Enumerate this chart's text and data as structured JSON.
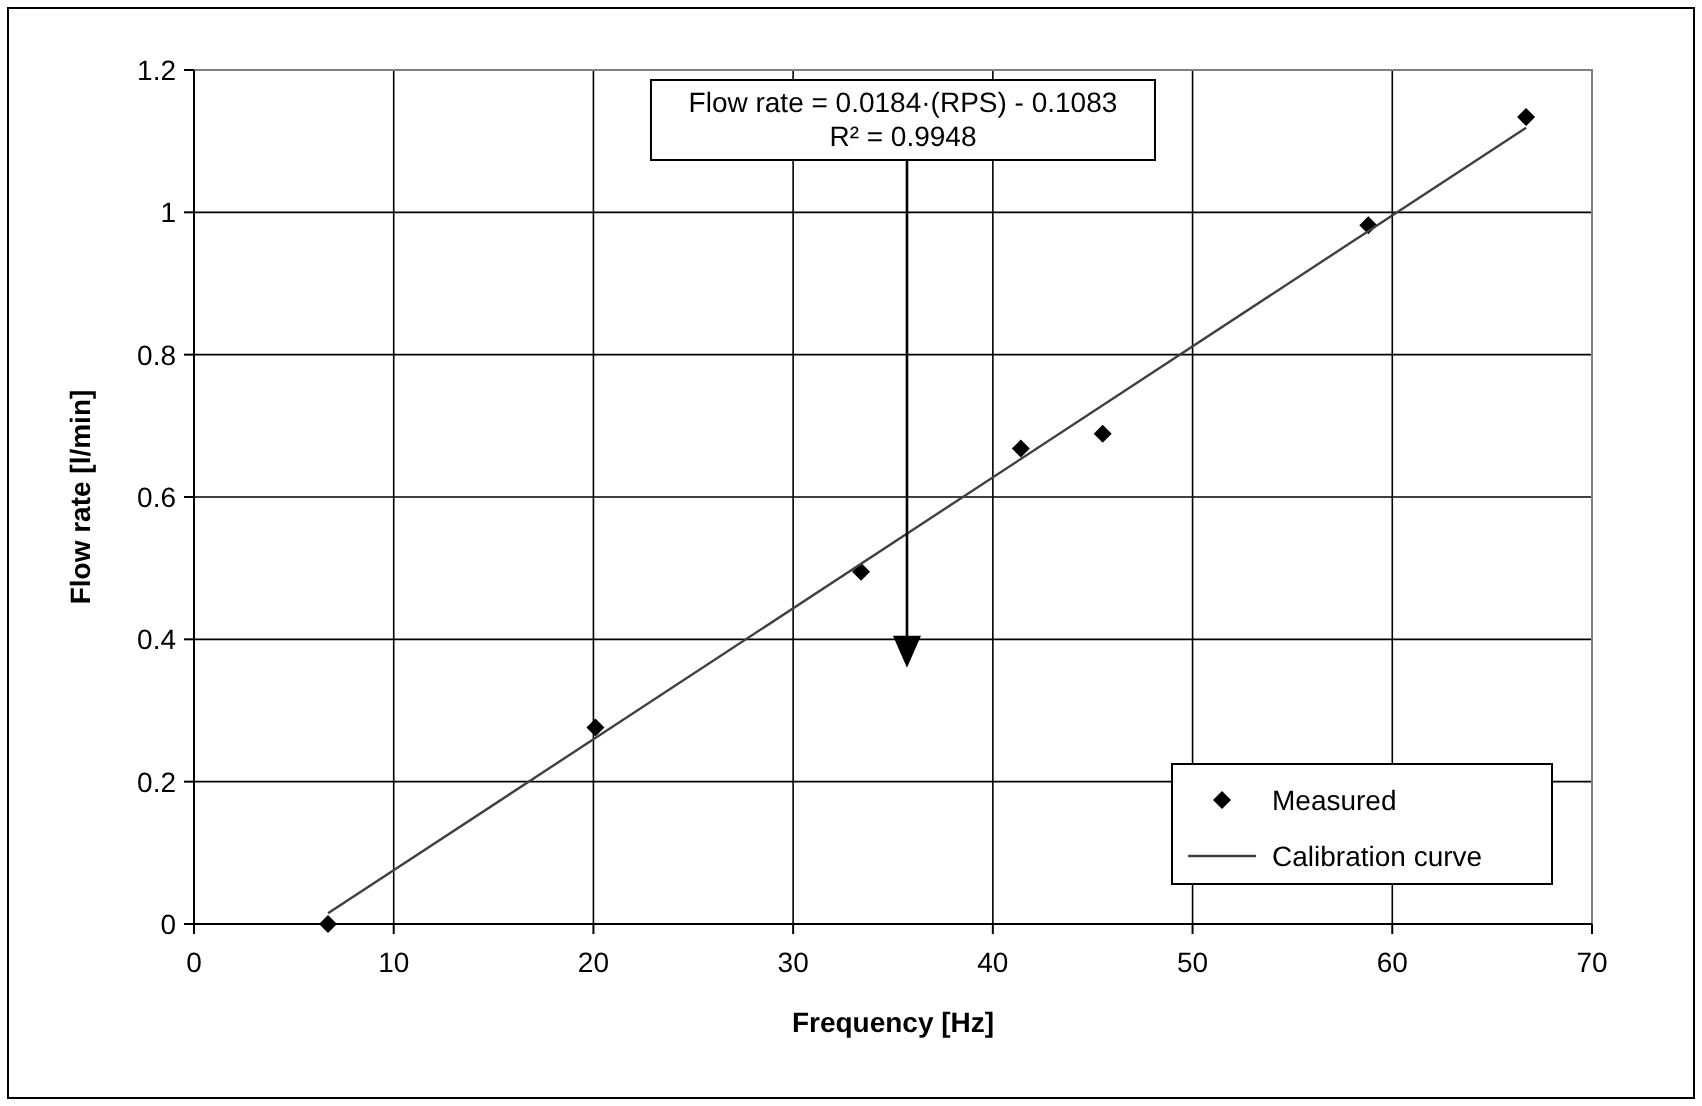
{
  "chart_data": {
    "type": "scatter",
    "xlabel": "Frequency [Hz]",
    "ylabel": "Flow rate [l/min]",
    "xlim": [
      0,
      70
    ],
    "xticks": [
      0,
      10,
      20,
      30,
      40,
      50,
      60,
      70
    ],
    "ylim": [
      0,
      1.2
    ],
    "yticks": [
      0,
      0.2,
      0.4,
      0.6,
      0.8,
      1,
      1.2
    ],
    "grid": true,
    "legend": "bottom right",
    "marker": "diamond",
    "series": [
      {
        "name": "Measured",
        "color": "#000000",
        "x": [
          6.71,
          20.1,
          33.4,
          41.4,
          45.5,
          58.8,
          66.7
        ],
        "values": [
          0,
          0.276,
          0.495,
          0.668,
          0.689,
          0.982,
          1.134
        ]
      },
      {
        "name": "Calibration curve",
        "type": "line",
        "color": "#404040",
        "line_style": "solid",
        "marker": "none",
        "x": [
          6.71,
          66.7
        ],
        "values": [
          0.015,
          1.119
        ]
      }
    ],
    "annotations": [
      "Flow rate = 0.0184·(RPS) - 0.1083\nR² = 0.9948"
    ]
  }
}
